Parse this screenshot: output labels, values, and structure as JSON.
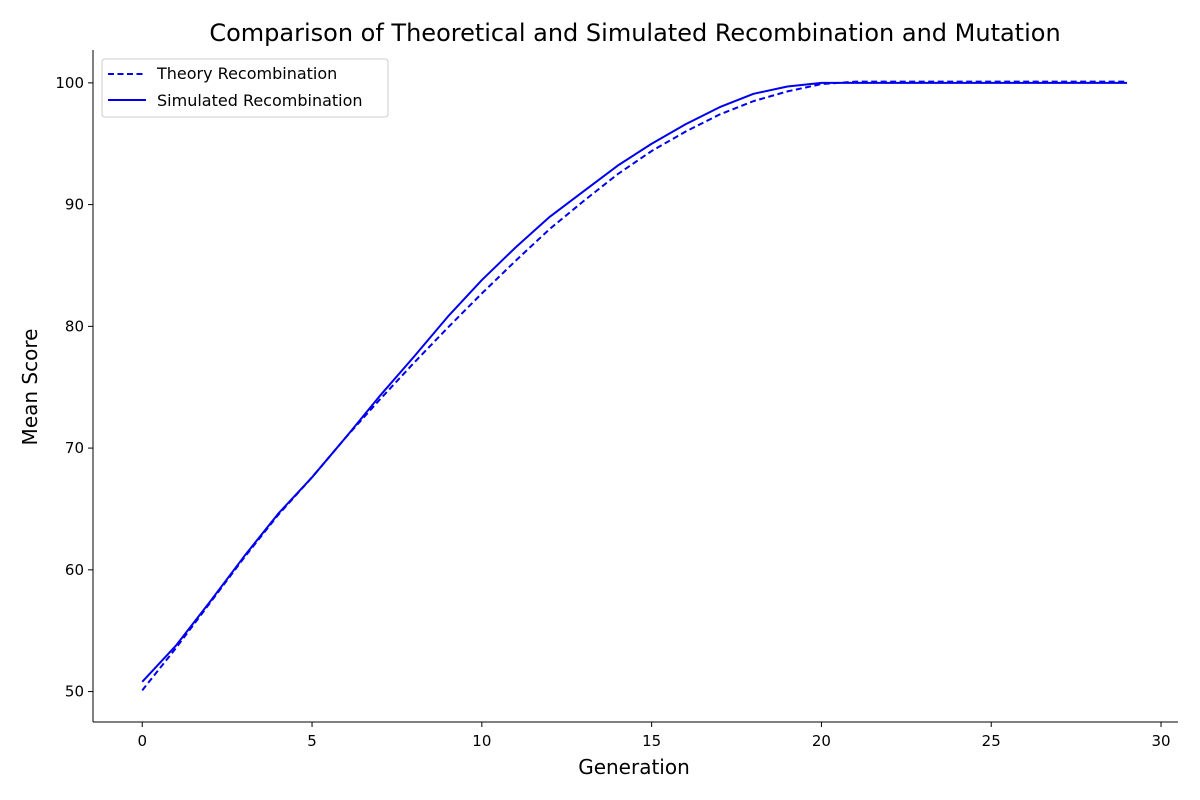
{
  "chart_data": {
    "type": "line",
    "title": "Comparison of Theoretical and Simulated Recombination and Mutation",
    "xlabel": "Generation",
    "ylabel": "Mean Score",
    "xlim": [
      -1.45,
      30.5
    ],
    "ylim": [
      47.5,
      102.7
    ],
    "xticks": [
      0,
      5,
      10,
      15,
      20,
      25,
      30
    ],
    "yticks": [
      50,
      60,
      70,
      80,
      90,
      100
    ],
    "grid": false,
    "legend_position": "top-left",
    "x": [
      0,
      1,
      2,
      3,
      4,
      5,
      6,
      7,
      8,
      9,
      10,
      11,
      12,
      13,
      14,
      15,
      16,
      17,
      18,
      19,
      20,
      21,
      22,
      23,
      24,
      25,
      26,
      27,
      28,
      29
    ],
    "series": [
      {
        "name": "Theory Recombination",
        "style": "dashed",
        "color": "#0000ee",
        "values": [
          50.1,
          53.6,
          57.3,
          61.0,
          64.5,
          67.6,
          70.9,
          74.0,
          77.0,
          79.9,
          82.7,
          85.4,
          88.0,
          90.3,
          92.5,
          94.4,
          96.0,
          97.4,
          98.5,
          99.3,
          99.9,
          100.1,
          100.1,
          100.1,
          100.1,
          100.1,
          100.1,
          100.1,
          100.1,
          100.1
        ]
      },
      {
        "name": "Simulated Recombination",
        "style": "solid",
        "color": "#0000ee",
        "values": [
          50.8,
          53.8,
          57.4,
          61.1,
          64.6,
          67.6,
          70.9,
          74.3,
          77.5,
          80.8,
          83.8,
          86.5,
          89.0,
          91.1,
          93.2,
          95.0,
          96.6,
          98.0,
          99.1,
          99.7,
          100.0,
          100.0,
          100.0,
          100.0,
          100.0,
          100.0,
          100.0,
          100.0,
          100.0,
          100.0
        ]
      }
    ]
  }
}
